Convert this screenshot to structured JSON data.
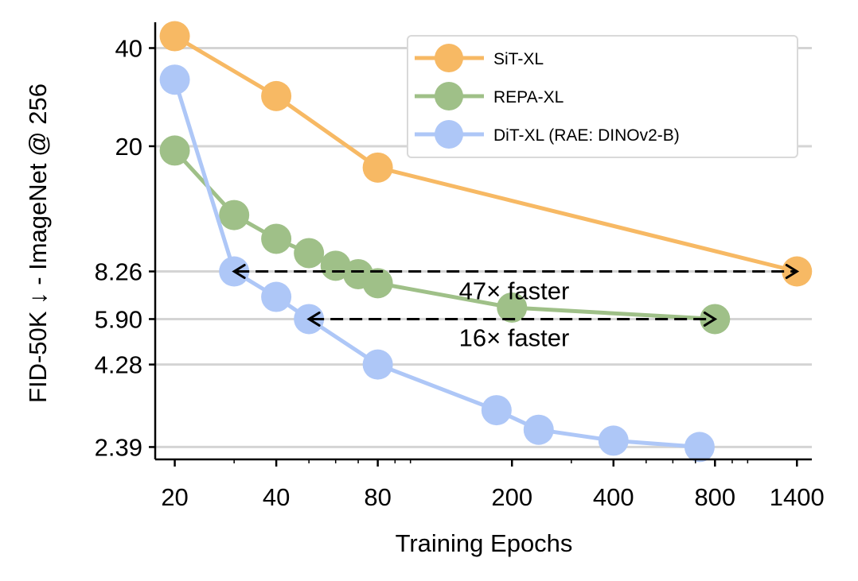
{
  "chart_data": {
    "type": "line",
    "title": "",
    "xlabel": "Training Epochs",
    "ylabel": "FID-50K ↓ - ImageNet @ 256",
    "xscale": "log",
    "yscale": "log",
    "xlim": [
      17.5,
      1550
    ],
    "ylim": [
      2.19,
      48
    ],
    "x_ticks": [
      20,
      40,
      80,
      200,
      400,
      800,
      1400
    ],
    "x_tick_labels": [
      "20",
      "40",
      "80",
      "200",
      "400",
      "800",
      "1400"
    ],
    "y_ticks": [
      2.39,
      4.28,
      5.9,
      8.26,
      20,
      40
    ],
    "y_tick_labels": [
      "2.39",
      "4.28",
      "5.90",
      "8.26",
      "20",
      "40"
    ],
    "grid": "horizontal",
    "legend_position": "top-right",
    "series": [
      {
        "name": "SiT-XL",
        "color": "#f7b964",
        "x": [
          20,
          40,
          80,
          1400
        ],
        "y": [
          43.5,
          28.5,
          17.2,
          8.26
        ]
      },
      {
        "name": "REPA-XL",
        "color": "#9fc088",
        "x": [
          20,
          30,
          40,
          50,
          60,
          70,
          80,
          200,
          800
        ],
        "y": [
          19.4,
          12.3,
          10.4,
          9.4,
          8.6,
          8.1,
          7.6,
          6.4,
          5.9
        ]
      },
      {
        "name": "DiT-XL (RAE: DINOv2-B)",
        "color": "#aec7f7",
        "x": [
          20,
          30,
          40,
          50,
          80,
          180,
          240,
          400,
          720
        ],
        "y": [
          32.0,
          8.26,
          6.9,
          5.9,
          4.28,
          3.1,
          2.7,
          2.5,
          2.39
        ]
      }
    ],
    "annotations": [
      {
        "text": "47× faster",
        "x_from": 30,
        "x_to": 1400,
        "y": 8.26
      },
      {
        "text": "16× faster",
        "x_from": 50,
        "x_to": 800,
        "y": 5.9
      }
    ]
  }
}
